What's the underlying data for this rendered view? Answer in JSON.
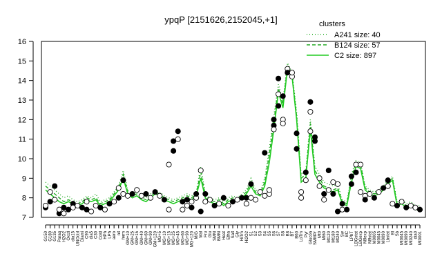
{
  "chart_data": {
    "type": "line",
    "title": "ypqP [2151626,2152045,+1]",
    "xlabel": "",
    "ylabel": "",
    "ylim": [
      7,
      16
    ],
    "yticks": [
      7,
      8,
      9,
      10,
      11,
      12,
      13,
      14,
      15,
      16
    ],
    "categories": [
      "G150",
      "G180",
      "G135",
      "Paraq",
      "H2O2",
      "Oxctl",
      "dia15",
      "UNOctrl",
      "Diami",
      "C90",
      "dia5",
      "C30",
      "Cold",
      "HPh",
      "LPh",
      "aero",
      "nit",
      "ferm",
      "GM+10",
      "GM+25",
      "GM+15",
      "GM+40",
      "GM+60",
      "GM+90",
      "GM+120",
      "MG+5",
      "MG+10",
      "MG+15",
      "MG+25",
      "MG+45",
      "MG+60",
      "MG+90",
      "MG+120",
      "M/G",
      "Mal",
      "Fru",
      "Glu",
      "SMM",
      "BMM",
      "Heat",
      "Etha",
      "Salt",
      "Gly",
      "HiTm",
      "Hi2O2",
      "S1",
      "S2",
      "S3",
      "S4",
      "S5",
      "S6",
      "S7",
      "S8",
      "B8",
      "BT",
      "B60",
      "LoTm",
      "Pyr",
      "Glucon",
      "SMMPr",
      "Mt0",
      "Mt60",
      "Mt120",
      "Mt180",
      "Mt240",
      "Sw",
      "BC",
      "LPhT",
      "LBGstat",
      "LBGexp",
      "M9exp",
      "M9stat",
      "M0005",
      "M0045",
      "M0090",
      "Lbstat",
      "BI",
      "Sb",
      "Mt0045",
      "Mt0090",
      "Mt0240",
      "dia0",
      "Mt0001"
    ],
    "axis_labels": [
      "G150",
      "G180",
      "G135",
      "Paraq",
      "H2O2",
      "Oxctl",
      "dia15",
      "UNOctrl",
      "Diami",
      "C90",
      "dia5",
      "C30",
      "Cold",
      "HPh",
      "LPh",
      "aero",
      "nit",
      "ferm",
      "GM+10",
      "GM+25",
      "GM+15",
      "GM+40",
      "GM+60",
      "GM+90",
      "GM+120",
      "MG+5",
      "MG+10",
      "MG+15",
      "MG+25",
      "MG+45",
      "MG+60",
      "MG+90",
      "MG+120",
      "M/G",
      "Mal",
      "Fru",
      "Glu",
      "SMM",
      "BMM",
      "Heat",
      "Etha",
      "Salt",
      "Gly",
      "HiTm",
      "Hi2O2",
      "S1",
      "S2",
      "S3",
      "S4",
      "S5",
      "S6",
      "S7",
      "S8",
      "B8",
      "BT",
      "B60",
      "LoTm",
      "Pyr",
      "Glucon",
      "SMMPr",
      "Mt0",
      "Mt60",
      "Mt120",
      "Mt180",
      "Mt240",
      "Sw",
      "BC",
      "LPhT",
      "LBGstat",
      "LBGexp",
      "M9exp",
      "M9stat",
      "M0005",
      "M0045",
      "M0090",
      "Lbstat",
      "BI",
      "Sb",
      "Mt0045",
      "Mt0090",
      "Mt0240",
      "dia0",
      "Mt0001"
    ],
    "series": [
      {
        "name": "A241 size: 40",
        "style": "dotted",
        "color": "#22aa22",
        "values": [
          8.8,
          8.6,
          8.4,
          8.2,
          8.0,
          8.1,
          7.9,
          7.8,
          7.9,
          8.1,
          8.0,
          8.2,
          7.8,
          7.9,
          8.0,
          8.3,
          8.6,
          9.4,
          8.4,
          8.2,
          8.3,
          8.1,
          8.0,
          8.2,
          8.4,
          8.3,
          8.1,
          8.0,
          7.9,
          8.0,
          8.1,
          8.2,
          8.1,
          8.3,
          9.6,
          8.2,
          8.0,
          7.9,
          8.0,
          7.8,
          8.0,
          8.1,
          8.0,
          8.2,
          8.4,
          9.0,
          8.4,
          8.3,
          9.0,
          10.5,
          12.2,
          13.8,
          13.0,
          14.9,
          14.4,
          12.4,
          9.2,
          9.4,
          12.0,
          9.6,
          9.2,
          8.8,
          8.7,
          8.6,
          8.7,
          7.9,
          7.8,
          9.2,
          9.9,
          9.8,
          8.6,
          8.4,
          8.3,
          8.4,
          8.6,
          8.9,
          9.1,
          7.8,
          7.9,
          7.7,
          7.8,
          7.6,
          7.6
        ]
      },
      {
        "name": "B124 size: 57",
        "style": "dashed",
        "color": "#22aa22",
        "values": [
          8.6,
          8.4,
          8.2,
          8.0,
          7.8,
          7.9,
          7.8,
          7.7,
          7.8,
          8.0,
          7.9,
          8.0,
          7.7,
          7.8,
          7.9,
          8.2,
          8.5,
          9.2,
          8.3,
          8.1,
          8.2,
          8.0,
          7.9,
          8.1,
          8.3,
          8.2,
          8.0,
          7.9,
          7.8,
          7.9,
          8.0,
          8.1,
          8.0,
          8.2,
          9.3,
          8.1,
          7.9,
          7.8,
          7.9,
          7.7,
          7.9,
          8.0,
          7.9,
          8.1,
          8.3,
          8.8,
          8.3,
          8.2,
          8.8,
          10.2,
          11.9,
          13.6,
          12.8,
          14.7,
          14.3,
          12.2,
          9.0,
          9.2,
          11.8,
          9.4,
          9.0,
          8.6,
          8.5,
          8.4,
          8.5,
          7.8,
          7.7,
          9.0,
          9.8,
          9.7,
          8.5,
          8.3,
          8.2,
          8.3,
          8.5,
          8.8,
          9.0,
          7.7,
          7.8,
          7.6,
          7.7,
          7.5,
          7.5
        ]
      },
      {
        "name": "C2 size: 897",
        "style": "solid",
        "color": "#22cc22",
        "values": [
          8.4,
          8.2,
          8.0,
          7.8,
          7.7,
          7.8,
          7.7,
          7.6,
          7.7,
          7.9,
          7.8,
          7.9,
          7.6,
          7.7,
          7.8,
          8.1,
          8.4,
          9.0,
          8.2,
          8.0,
          8.1,
          7.9,
          7.8,
          8.0,
          8.2,
          8.1,
          7.9,
          7.8,
          7.7,
          7.8,
          7.9,
          8.0,
          7.9,
          8.1,
          9.0,
          8.0,
          7.8,
          7.7,
          7.8,
          7.6,
          7.8,
          7.9,
          7.8,
          8.0,
          8.2,
          8.6,
          8.2,
          8.1,
          8.6,
          9.8,
          11.5,
          13.4,
          12.6,
          14.6,
          14.2,
          12.0,
          8.8,
          9.0,
          11.5,
          9.2,
          8.8,
          8.5,
          8.4,
          8.3,
          8.4,
          7.7,
          7.6,
          8.8,
          9.6,
          9.5,
          8.4,
          8.2,
          8.1,
          8.2,
          8.4,
          8.7,
          8.9,
          7.6,
          7.7,
          7.5,
          7.6,
          7.4,
          7.4
        ]
      }
    ],
    "points": [
      {
        "i": 0,
        "y": 7.5,
        "f": true
      },
      {
        "i": 0,
        "y": 7.6,
        "f": false
      },
      {
        "i": 1,
        "y": 7.8,
        "f": true
      },
      {
        "i": 1,
        "y": 8.3,
        "f": false
      },
      {
        "i": 2,
        "y": 8.6,
        "f": true
      },
      {
        "i": 2,
        "y": 7.9,
        "f": false
      },
      {
        "i": 3,
        "y": 7.2,
        "f": true
      },
      {
        "i": 3,
        "y": 7.4,
        "f": false
      },
      {
        "i": 4,
        "y": 7.2,
        "f": false
      },
      {
        "i": 4,
        "y": 7.5,
        "f": true
      },
      {
        "i": 5,
        "y": 7.4,
        "f": true
      },
      {
        "i": 6,
        "y": 7.7,
        "f": true
      },
      {
        "i": 6,
        "y": 7.5,
        "f": false
      },
      {
        "i": 7,
        "y": 7.6,
        "f": false
      },
      {
        "i": 8,
        "y": 7.5,
        "f": true
      },
      {
        "i": 9,
        "y": 7.8,
        "f": false
      },
      {
        "i": 9,
        "y": 7.4,
        "f": true
      },
      {
        "i": 10,
        "y": 7.3,
        "f": false
      },
      {
        "i": 11,
        "y": 7.6,
        "f": false
      },
      {
        "i": 12,
        "y": 7.5,
        "f": true
      },
      {
        "i": 13,
        "y": 7.4,
        "f": false
      },
      {
        "i": 14,
        "y": 7.7,
        "f": true
      },
      {
        "i": 15,
        "y": 7.8,
        "f": false
      },
      {
        "i": 16,
        "y": 8.5,
        "f": false
      },
      {
        "i": 16,
        "y": 8.0,
        "f": true
      },
      {
        "i": 17,
        "y": 8.9,
        "f": true
      },
      {
        "i": 17,
        "y": 8.2,
        "f": false
      },
      {
        "i": 18,
        "y": 8.1,
        "f": false
      },
      {
        "i": 19,
        "y": 8.2,
        "f": true
      },
      {
        "i": 20,
        "y": 8.4,
        "f": false
      },
      {
        "i": 21,
        "y": 8.1,
        "f": false
      },
      {
        "i": 22,
        "y": 8.2,
        "f": true
      },
      {
        "i": 23,
        "y": 8.0,
        "f": false
      },
      {
        "i": 24,
        "y": 8.3,
        "f": true
      },
      {
        "i": 25,
        "y": 8.1,
        "f": false
      },
      {
        "i": 26,
        "y": 7.9,
        "f": true
      },
      {
        "i": 27,
        "y": 7.4,
        "f": false
      },
      {
        "i": 27,
        "y": 9.7,
        "f": false
      },
      {
        "i": 28,
        "y": 10.4,
        "f": true
      },
      {
        "i": 28,
        "y": 10.9,
        "f": true
      },
      {
        "i": 29,
        "y": 11.4,
        "f": true
      },
      {
        "i": 29,
        "y": 11.0,
        "f": false
      },
      {
        "i": 30,
        "y": 7.8,
        "f": true
      },
      {
        "i": 30,
        "y": 7.4,
        "f": false
      },
      {
        "i": 31,
        "y": 7.6,
        "f": false
      },
      {
        "i": 31,
        "y": 7.9,
        "f": true
      },
      {
        "i": 32,
        "y": 7.8,
        "f": false
      },
      {
        "i": 32,
        "y": 7.5,
        "f": true
      },
      {
        "i": 33,
        "y": 8.0,
        "f": false
      },
      {
        "i": 33,
        "y": 8.2,
        "f": true
      },
      {
        "i": 34,
        "y": 9.4,
        "f": false
      },
      {
        "i": 34,
        "y": 7.3,
        "f": true
      },
      {
        "i": 35,
        "y": 8.2,
        "f": true
      },
      {
        "i": 35,
        "y": 7.8,
        "f": false
      },
      {
        "i": 36,
        "y": 7.9,
        "f": false
      },
      {
        "i": 37,
        "y": 7.6,
        "f": true
      },
      {
        "i": 38,
        "y": 7.7,
        "f": false
      },
      {
        "i": 39,
        "y": 8.0,
        "f": true
      },
      {
        "i": 40,
        "y": 7.6,
        "f": false
      },
      {
        "i": 41,
        "y": 7.8,
        "f": true
      },
      {
        "i": 42,
        "y": 7.9,
        "f": false
      },
      {
        "i": 43,
        "y": 8.0,
        "f": true
      },
      {
        "i": 44,
        "y": 7.7,
        "f": false
      },
      {
        "i": 44,
        "y": 8.0,
        "f": true
      },
      {
        "i": 45,
        "y": 8.7,
        "f": true
      },
      {
        "i": 45,
        "y": 8.0,
        "f": false
      },
      {
        "i": 46,
        "y": 7.9,
        "f": false
      },
      {
        "i": 47,
        "y": 8.3,
        "f": false
      },
      {
        "i": 48,
        "y": 10.3,
        "f": true
      },
      {
        "i": 48,
        "y": 8.1,
        "f": false
      },
      {
        "i": 49,
        "y": 8.2,
        "f": false
      },
      {
        "i": 49,
        "y": 8.4,
        "f": false
      },
      {
        "i": 50,
        "y": 11.7,
        "f": true
      },
      {
        "i": 50,
        "y": 11.5,
        "f": false
      },
      {
        "i": 50,
        "y": 12.0,
        "f": true
      },
      {
        "i": 51,
        "y": 12.7,
        "f": true
      },
      {
        "i": 51,
        "y": 13.3,
        "f": false
      },
      {
        "i": 51,
        "y": 14.1,
        "f": true
      },
      {
        "i": 52,
        "y": 13.2,
        "f": true
      },
      {
        "i": 52,
        "y": 12.0,
        "f": false
      },
      {
        "i": 52,
        "y": 11.8,
        "f": false
      },
      {
        "i": 53,
        "y": 14.6,
        "f": false
      },
      {
        "i": 53,
        "y": 14.4,
        "f": true
      },
      {
        "i": 54,
        "y": 14.2,
        "f": false
      },
      {
        "i": 54,
        "y": 14.4,
        "f": false
      },
      {
        "i": 55,
        "y": 11.3,
        "f": true
      },
      {
        "i": 55,
        "y": 10.5,
        "f": true
      },
      {
        "i": 56,
        "y": 8.3,
        "f": false
      },
      {
        "i": 56,
        "y": 8.0,
        "f": false
      },
      {
        "i": 57,
        "y": 9.3,
        "f": true
      },
      {
        "i": 57,
        "y": 8.9,
        "f": false
      },
      {
        "i": 58,
        "y": 12.9,
        "f": true
      },
      {
        "i": 58,
        "y": 12.4,
        "f": false
      },
      {
        "i": 58,
        "y": 11.4,
        "f": false
      },
      {
        "i": 59,
        "y": 11.1,
        "f": true
      },
      {
        "i": 59,
        "y": 10.9,
        "f": true
      },
      {
        "i": 60,
        "y": 9.0,
        "f": false
      },
      {
        "i": 60,
        "y": 8.6,
        "f": false
      },
      {
        "i": 61,
        "y": 8.2,
        "f": true
      },
      {
        "i": 61,
        "y": 7.9,
        "f": false
      },
      {
        "i": 62,
        "y": 9.4,
        "f": true
      },
      {
        "i": 62,
        "y": 8.4,
        "f": false
      },
      {
        "i": 63,
        "y": 8.8,
        "f": false
      },
      {
        "i": 63,
        "y": 8.2,
        "f": true
      },
      {
        "i": 64,
        "y": 8.7,
        "f": false
      },
      {
        "i": 64,
        "y": 7.3,
        "f": true
      },
      {
        "i": 65,
        "y": 7.7,
        "f": true
      },
      {
        "i": 65,
        "y": 7.4,
        "f": false
      },
      {
        "i": 66,
        "y": 7.4,
        "f": true
      },
      {
        "i": 67,
        "y": 9.1,
        "f": true
      },
      {
        "i": 67,
        "y": 8.7,
        "f": true
      },
      {
        "i": 68,
        "y": 9.7,
        "f": false
      },
      {
        "i": 68,
        "y": 9.3,
        "f": true
      },
      {
        "i": 69,
        "y": 9.7,
        "f": false
      },
      {
        "i": 69,
        "y": 8.3,
        "f": false
      },
      {
        "i": 70,
        "y": 8.1,
        "f": false
      },
      {
        "i": 70,
        "y": 7.9,
        "f": true
      },
      {
        "i": 71,
        "y": 8.2,
        "f": false
      },
      {
        "i": 72,
        "y": 8.0,
        "f": true
      },
      {
        "i": 73,
        "y": 8.3,
        "f": false
      },
      {
        "i": 74,
        "y": 8.5,
        "f": true
      },
      {
        "i": 75,
        "y": 8.9,
        "f": true
      },
      {
        "i": 75,
        "y": 8.6,
        "f": false
      },
      {
        "i": 76,
        "y": 7.7,
        "f": false
      },
      {
        "i": 77,
        "y": 7.6,
        "f": true
      },
      {
        "i": 78,
        "y": 7.8,
        "f": false
      },
      {
        "i": 79,
        "y": 7.5,
        "f": true
      },
      {
        "i": 80,
        "y": 7.6,
        "f": false
      },
      {
        "i": 81,
        "y": 7.5,
        "f": false
      },
      {
        "i": 82,
        "y": 7.4,
        "f": true
      }
    ],
    "grid": false,
    "legend": {
      "title": "clusters",
      "placement": "top-right"
    }
  }
}
